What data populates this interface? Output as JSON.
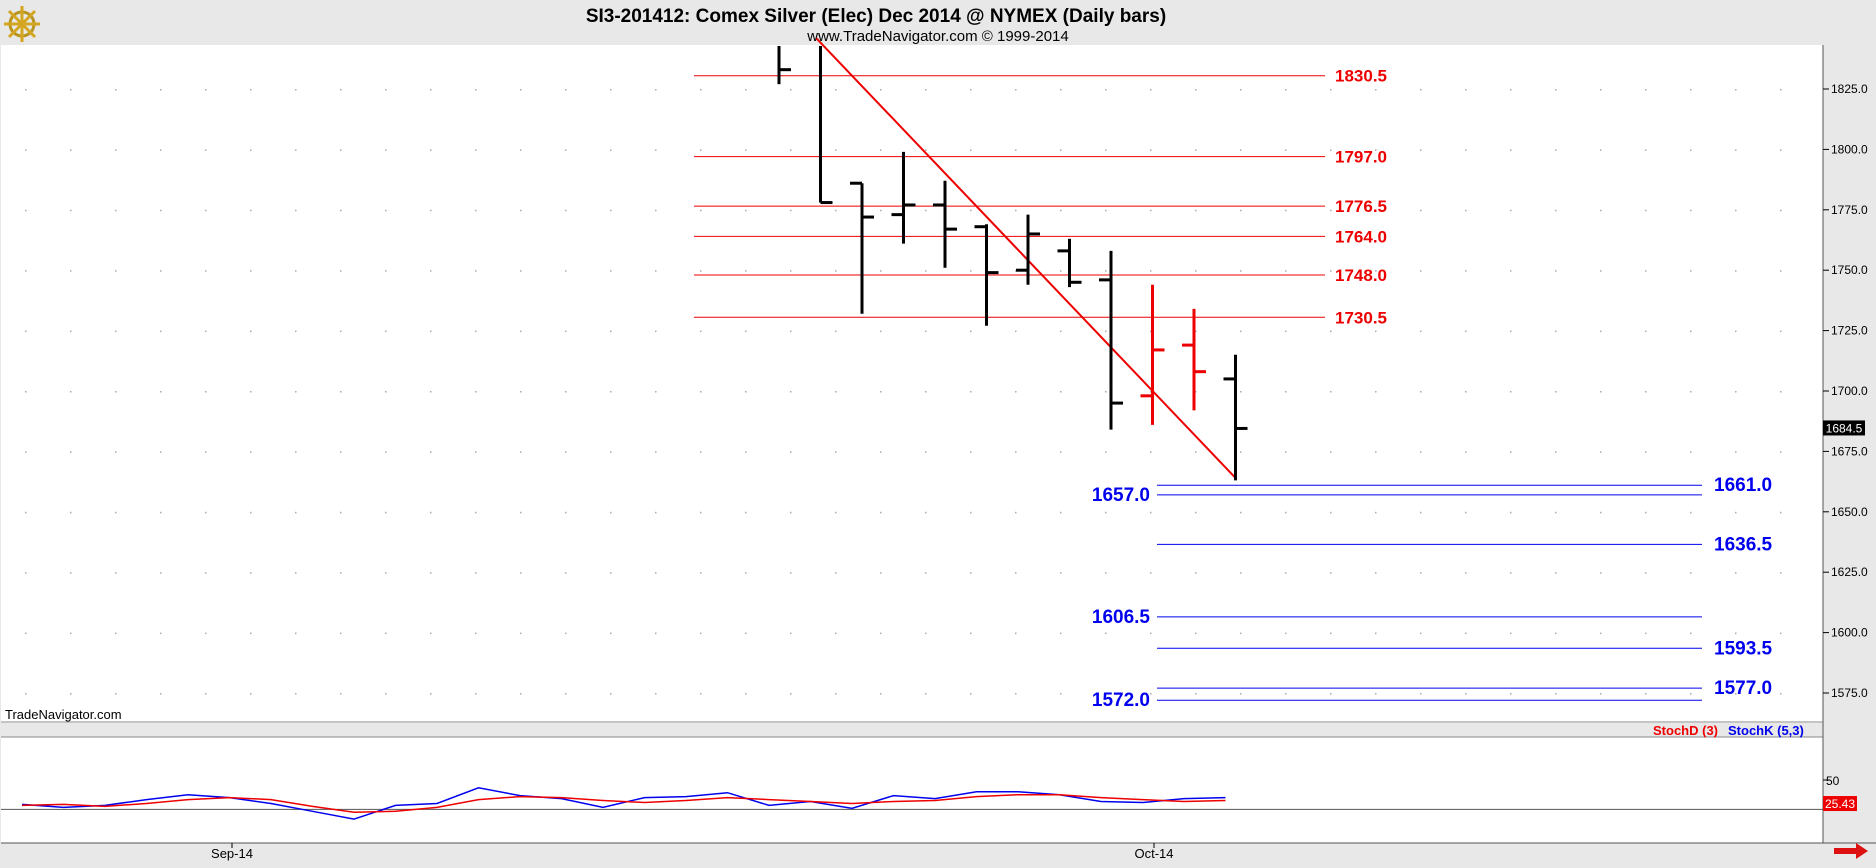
{
  "header": {
    "title": "SI3-201412:  Comex Silver (Elec) Dec 2014 @ NYMEX  (Daily bars)",
    "copyright": "www.TradeNavigator.com © 1999-2014",
    "logo_icon": "ship-wheel-logo-icon"
  },
  "watermark": "TradeNavigator.com",
  "colors": {
    "up_bar": "#000000",
    "down_bar": "#ee0000",
    "resistance": "#ee0000",
    "support": "#0000ee",
    "trendline": "#ee0000",
    "stoch_d": "#ee0000",
    "stoch_k": "#0000ee"
  },
  "price_axis": {
    "ticks": [
      "1825.0",
      "1800.0",
      "1775.0",
      "1750.0",
      "1725.0",
      "1700.0",
      "1675.0",
      "1650.0",
      "1625.0",
      "1600.0",
      "1575.0"
    ],
    "last_price_label": "1684.5"
  },
  "x_axis": {
    "labels": [
      "Sep-14",
      "Oct-14"
    ]
  },
  "resistance_labels": [
    "1830.5",
    "1797.0",
    "1776.5",
    "1764.0",
    "1748.0",
    "1730.5"
  ],
  "support_labels": [
    "1661.0",
    "1657.0",
    "1636.5",
    "1606.5",
    "1593.5",
    "1577.0",
    "1572.0"
  ],
  "stoch": {
    "legend_d": "StochD (3)",
    "legend_k": "StochK (5,3)",
    "tick_50": "50",
    "last_value_label": "25.43"
  },
  "chart_data": {
    "type": "ohlc",
    "title": "SI3-201412:  Comex Silver (Elec) Dec 2014 @ NYMEX  (Daily bars)",
    "y_range": [
      1565,
      1845
    ],
    "bars": [
      {
        "high": 1850,
        "low": 1827,
        "close": 1833,
        "color": "black"
      },
      {
        "high": 1844,
        "low": 1778,
        "close": 1778,
        "color": "black"
      },
      {
        "open": 1786,
        "high": 1786,
        "low": 1732,
        "close": 1772,
        "color": "black"
      },
      {
        "open": 1773,
        "high": 1799,
        "low": 1761,
        "close": 1777,
        "color": "black"
      },
      {
        "open": 1777,
        "high": 1787,
        "low": 1751,
        "close": 1767,
        "color": "black"
      },
      {
        "open": 1768,
        "high": 1769,
        "low": 1727,
        "close": 1749,
        "color": "black"
      },
      {
        "open": 1750,
        "high": 1773,
        "low": 1744,
        "close": 1765,
        "color": "black"
      },
      {
        "open": 1758,
        "high": 1763,
        "low": 1743,
        "close": 1745,
        "color": "black"
      },
      {
        "open": 1746,
        "high": 1758,
        "low": 1684,
        "close": 1695,
        "color": "black"
      },
      {
        "open": 1698,
        "high": 1744,
        "low": 1686,
        "close": 1717,
        "color": "red"
      },
      {
        "open": 1719,
        "high": 1734,
        "low": 1692,
        "close": 1708,
        "color": "red"
      },
      {
        "open": 1705,
        "high": 1715,
        "low": 1663,
        "close": 1684.5,
        "color": "black"
      }
    ],
    "trendline": {
      "from_bar": 0.9,
      "from_price": 1846,
      "to_bar": 11,
      "to_price": 1664
    },
    "resistance_levels": [
      1830.5,
      1797.0,
      1776.5,
      1764.0,
      1748.0,
      1730.5
    ],
    "support_levels": [
      1661.0,
      1657.0,
      1636.5,
      1606.5,
      1593.5,
      1577.0,
      1572.0
    ],
    "stochastic": {
      "y_range": [
        0,
        100
      ],
      "stoch_k": [
        25,
        22,
        24,
        30,
        35,
        32,
        26,
        18,
        10,
        24,
        26,
        42,
        34,
        31,
        22,
        32,
        33,
        37,
        24,
        28,
        21,
        34,
        31,
        38,
        38,
        35,
        28,
        27,
        31,
        32
      ],
      "stoch_d": [
        24,
        25,
        23,
        26,
        30,
        32,
        30,
        23,
        17,
        18,
        22,
        30,
        33,
        32,
        29,
        27,
        29,
        32,
        30,
        28,
        26,
        28,
        29,
        33,
        35,
        35,
        32,
        30,
        28,
        29
      ]
    }
  }
}
